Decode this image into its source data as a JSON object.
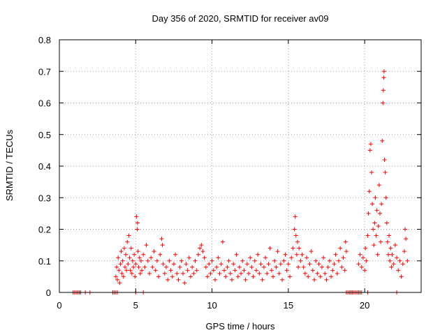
{
  "chart_data": {
    "type": "scatter",
    "title": "Day 356 of 2020, SRMTID for receiver av09",
    "xlabel": "GPS time / hours",
    "ylabel": "SRMTID / TECUs",
    "xlim": [
      0,
      23.7
    ],
    "ylim": [
      0,
      0.8
    ],
    "xticks": [
      0,
      5,
      10,
      15,
      20
    ],
    "yticks": [
      0,
      0.1,
      0.2,
      0.3,
      0.4,
      0.5,
      0.6,
      0.7,
      0.8
    ],
    "xtick_labels": [
      "0",
      "5",
      "10",
      "15",
      "20"
    ],
    "ytick_labels": [
      "0",
      "0.1",
      "0.2",
      "0.3",
      "0.4",
      "0.5",
      "0.6",
      "0.7",
      "0.8"
    ],
    "grid": true,
    "marker": "+",
    "color": "#ff0000",
    "series": [
      {
        "name": "SRMTID av09",
        "points": [
          [
            0.9,
            0
          ],
          [
            1.0,
            0
          ],
          [
            1.1,
            0
          ],
          [
            1.2,
            0
          ],
          [
            1.3,
            0
          ],
          [
            1.4,
            0
          ],
          [
            1.7,
            0
          ],
          [
            2.0,
            0
          ],
          [
            3.5,
            0
          ],
          [
            3.6,
            0
          ],
          [
            3.7,
            0
          ],
          [
            3.8,
            0
          ],
          [
            5.0,
            0
          ],
          [
            5.5,
            0
          ],
          [
            18.8,
            0
          ],
          [
            18.9,
            0
          ],
          [
            19.0,
            0
          ],
          [
            19.1,
            0
          ],
          [
            19.2,
            0
          ],
          [
            19.3,
            0
          ],
          [
            19.4,
            0
          ],
          [
            19.5,
            0
          ],
          [
            19.6,
            0
          ],
          [
            19.7,
            0
          ],
          [
            19.8,
            0
          ],
          [
            20.2,
            0
          ],
          [
            22.1,
            0
          ],
          [
            3.7,
            0.05
          ],
          [
            3.75,
            0.08
          ],
          [
            3.8,
            0.04
          ],
          [
            3.85,
            0.11
          ],
          [
            3.9,
            0.07
          ],
          [
            3.95,
            0.03
          ],
          [
            4.0,
            0.09
          ],
          [
            4.05,
            0.13
          ],
          [
            4.1,
            0.06
          ],
          [
            4.15,
            0.1
          ],
          [
            4.2,
            0.05
          ],
          [
            4.25,
            0.14
          ],
          [
            4.3,
            0.08
          ],
          [
            4.35,
            0.12
          ],
          [
            4.4,
            0.07
          ],
          [
            4.45,
            0.16
          ],
          [
            4.5,
            0.09
          ],
          [
            4.55,
            0.18
          ],
          [
            4.6,
            0.11
          ],
          [
            4.65,
            0.07
          ],
          [
            4.7,
            0.14
          ],
          [
            4.75,
            0.06
          ],
          [
            4.8,
            0.1
          ],
          [
            4.85,
            0.08
          ],
          [
            4.9,
            0.12
          ],
          [
            4.95,
            0.05
          ],
          [
            5.0,
            0.09
          ],
          [
            5.05,
            0.24
          ],
          [
            5.1,
            0.2
          ],
          [
            5.12,
            0.22
          ],
          [
            5.15,
            0.13
          ],
          [
            5.2,
            0.08
          ],
          [
            5.25,
            0.11
          ],
          [
            5.3,
            0.06
          ],
          [
            5.35,
            0.1
          ],
          [
            5.4,
            0.07
          ],
          [
            5.5,
            0.12
          ],
          [
            5.6,
            0.08
          ],
          [
            5.7,
            0.15
          ],
          [
            5.8,
            0.1
          ],
          [
            5.9,
            0.06
          ],
          [
            6.0,
            0.11
          ],
          [
            6.1,
            0.08
          ],
          [
            6.2,
            0.13
          ],
          [
            6.3,
            0.07
          ],
          [
            6.4,
            0.1
          ],
          [
            6.5,
            0.05
          ],
          [
            6.6,
            0.12
          ],
          [
            6.7,
            0.17
          ],
          [
            6.75,
            0.15
          ],
          [
            6.8,
            0.09
          ],
          [
            6.9,
            0.06
          ],
          [
            7.0,
            0.08
          ],
          [
            7.1,
            0.04
          ],
          [
            7.2,
            0.1
          ],
          [
            7.3,
            0.07
          ],
          [
            7.4,
            0.05
          ],
          [
            7.5,
            0.09
          ],
          [
            7.6,
            0.12
          ],
          [
            7.7,
            0.06
          ],
          [
            7.8,
            0.04
          ],
          [
            7.9,
            0.08
          ],
          [
            8.0,
            0.1
          ],
          [
            8.1,
            0.06
          ],
          [
            8.2,
            0.03
          ],
          [
            8.3,
            0.09
          ],
          [
            8.4,
            0.07
          ],
          [
            8.5,
            0.11
          ],
          [
            8.6,
            0.05
          ],
          [
            8.7,
            0.08
          ],
          [
            8.8,
            0.06
          ],
          [
            8.9,
            0.1
          ],
          [
            9.0,
            0.07
          ],
          [
            9.1,
            0.12
          ],
          [
            9.2,
            0.14
          ],
          [
            9.3,
            0.15
          ],
          [
            9.4,
            0.13
          ],
          [
            9.5,
            0.11
          ],
          [
            9.6,
            0.08
          ],
          [
            9.7,
            0.05
          ],
          [
            9.8,
            0.09
          ],
          [
            9.9,
            0.06
          ],
          [
            10.0,
            0.1
          ],
          [
            10.1,
            0.07
          ],
          [
            10.2,
            0.04
          ],
          [
            10.3,
            0.08
          ],
          [
            10.4,
            0.11
          ],
          [
            10.5,
            0.06
          ],
          [
            10.6,
            0.09
          ],
          [
            10.7,
            0.16
          ],
          [
            10.8,
            0.07
          ],
          [
            10.9,
            0.05
          ],
          [
            11.0,
            0.08
          ],
          [
            11.1,
            0.1
          ],
          [
            11.2,
            0.06
          ],
          [
            11.3,
            0.04
          ],
          [
            11.4,
            0.09
          ],
          [
            11.5,
            0.07
          ],
          [
            11.6,
            0.12
          ],
          [
            11.7,
            0.05
          ],
          [
            11.8,
            0.08
          ],
          [
            11.9,
            0.06
          ],
          [
            12.0,
            0.1
          ],
          [
            12.1,
            0.07
          ],
          [
            12.2,
            0.04
          ],
          [
            12.3,
            0.09
          ],
          [
            12.4,
            0.06
          ],
          [
            12.5,
            0.11
          ],
          [
            12.6,
            0.08
          ],
          [
            12.7,
            0.05
          ],
          [
            12.8,
            0.1
          ],
          [
            12.9,
            0.07
          ],
          [
            13.0,
            0.12
          ],
          [
            13.1,
            0.06
          ],
          [
            13.2,
            0.09
          ],
          [
            13.3,
            0.04
          ],
          [
            13.4,
            0.08
          ],
          [
            13.5,
            0.11
          ],
          [
            13.6,
            0.06
          ],
          [
            13.7,
            0.09
          ],
          [
            13.8,
            0.14
          ],
          [
            13.9,
            0.07
          ],
          [
            14.0,
            0.05
          ],
          [
            14.1,
            0.1
          ],
          [
            14.2,
            0.08
          ],
          [
            14.3,
            0.13
          ],
          [
            14.4,
            0.06
          ],
          [
            14.5,
            0.09
          ],
          [
            14.6,
            0.04
          ],
          [
            14.7,
            0.1
          ],
          [
            14.8,
            0.12
          ],
          [
            14.9,
            0.07
          ],
          [
            15.0,
            0.09
          ],
          [
            15.1,
            0.05
          ],
          [
            15.2,
            0.11
          ],
          [
            15.3,
            0.14
          ],
          [
            15.4,
            0.2
          ],
          [
            15.45,
            0.24
          ],
          [
            15.5,
            0.18
          ],
          [
            15.55,
            0.12
          ],
          [
            15.6,
            0.16
          ],
          [
            15.65,
            0.08
          ],
          [
            15.7,
            0.14
          ],
          [
            15.8,
            0.1
          ],
          [
            15.9,
            0.12
          ],
          [
            16.0,
            0.08
          ],
          [
            16.1,
            0.06
          ],
          [
            16.2,
            0.11
          ],
          [
            16.3,
            0.05
          ],
          [
            16.4,
            0.09
          ],
          [
            16.5,
            0.13
          ],
          [
            16.6,
            0.07
          ],
          [
            16.7,
            0.04
          ],
          [
            16.8,
            0.1
          ],
          [
            16.9,
            0.06
          ],
          [
            17.0,
            0.09
          ],
          [
            17.1,
            0.05
          ],
          [
            17.2,
            0.08
          ],
          [
            17.3,
            0.11
          ],
          [
            17.4,
            0.06
          ],
          [
            17.5,
            0.04
          ],
          [
            17.6,
            0.08
          ],
          [
            17.7,
            0.1
          ],
          [
            17.8,
            0.05
          ],
          [
            17.9,
            0.07
          ],
          [
            18.0,
            0.09
          ],
          [
            18.1,
            0.12
          ],
          [
            18.2,
            0.06
          ],
          [
            18.3,
            0.1
          ],
          [
            18.4,
            0.14
          ],
          [
            18.5,
            0.08
          ],
          [
            18.6,
            0.11
          ],
          [
            18.7,
            0.07
          ],
          [
            18.75,
            0.16
          ],
          [
            18.8,
            0.13
          ],
          [
            19.6,
            0.09
          ],
          [
            19.7,
            0.12
          ],
          [
            19.8,
            0.08
          ],
          [
            19.9,
            0.11
          ],
          [
            20.0,
            0.07
          ],
          [
            20.05,
            0.14
          ],
          [
            20.1,
            0.1
          ],
          [
            20.2,
            0.18
          ],
          [
            20.25,
            0.25
          ],
          [
            20.3,
            0.32
          ],
          [
            20.35,
            0.45
          ],
          [
            20.4,
            0.47
          ],
          [
            20.45,
            0.38
          ],
          [
            20.5,
            0.28
          ],
          [
            20.55,
            0.2
          ],
          [
            20.6,
            0.15
          ],
          [
            20.65,
            0.22
          ],
          [
            20.7,
            0.3
          ],
          [
            20.75,
            0.18
          ],
          [
            20.8,
            0.26
          ],
          [
            20.85,
            0.12
          ],
          [
            20.9,
            0.21
          ],
          [
            20.95,
            0.34
          ],
          [
            21.0,
            0.25
          ],
          [
            21.05,
            0.16
          ],
          [
            21.1,
            0.28
          ],
          [
            21.15,
            0.48
          ],
          [
            21.2,
            0.6
          ],
          [
            21.22,
            0.64
          ],
          [
            21.25,
            0.68
          ],
          [
            21.27,
            0.7
          ],
          [
            21.3,
            0.42
          ],
          [
            21.35,
            0.38
          ],
          [
            21.4,
            0.3
          ],
          [
            21.45,
            0.22
          ],
          [
            21.5,
            0.16
          ],
          [
            21.55,
            0.12
          ],
          [
            21.6,
            0.18
          ],
          [
            21.65,
            0.1
          ],
          [
            21.7,
            0.14
          ],
          [
            21.75,
            0.08
          ],
          [
            21.8,
            0.12
          ],
          [
            21.9,
            0.09
          ],
          [
            22.0,
            0.15
          ],
          [
            22.1,
            0.11
          ],
          [
            22.2,
            0.07
          ],
          [
            22.3,
            0.1
          ],
          [
            22.4,
            0.05
          ],
          [
            22.5,
            0.09
          ],
          [
            22.6,
            0.13
          ],
          [
            22.65,
            0.2
          ],
          [
            22.7,
            0.17
          ],
          [
            22.8,
            0.1
          ]
        ]
      }
    ]
  }
}
